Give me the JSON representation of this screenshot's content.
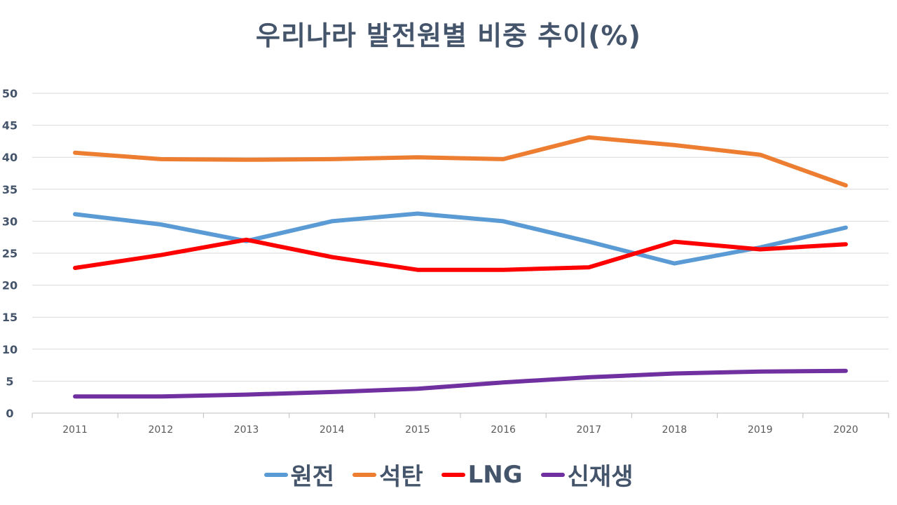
{
  "chart_data": {
    "type": "line",
    "title": "우리나라 발전원별 비중 추이(%)",
    "x": [
      "2011",
      "2012",
      "2013",
      "2014",
      "2015",
      "2016",
      "2017",
      "2018",
      "2019",
      "2020"
    ],
    "ylim": [
      0,
      50
    ],
    "yticks": [
      0,
      5,
      10,
      15,
      20,
      25,
      30,
      35,
      40,
      45,
      50
    ],
    "grid": true,
    "legend_position": "bottom",
    "series": [
      {
        "name": "원전",
        "color": "#5B9BD5",
        "values": [
          31.1,
          29.5,
          26.9,
          30.0,
          31.2,
          30.0,
          26.8,
          23.4,
          25.9,
          29.0
        ]
      },
      {
        "name": "석탄",
        "color": "#ED7D31",
        "values": [
          40.7,
          39.7,
          39.6,
          39.7,
          40.0,
          39.7,
          43.1,
          41.9,
          40.4,
          35.6
        ]
      },
      {
        "name": "LNG",
        "color": "#FF0000",
        "values": [
          22.7,
          24.7,
          27.1,
          24.4,
          22.4,
          22.4,
          22.8,
          26.8,
          25.6,
          26.4
        ]
      },
      {
        "name": "신재생",
        "color": "#7030A0",
        "values": [
          2.6,
          2.6,
          2.9,
          3.3,
          3.8,
          4.8,
          5.6,
          6.2,
          6.5,
          6.6
        ]
      }
    ]
  }
}
